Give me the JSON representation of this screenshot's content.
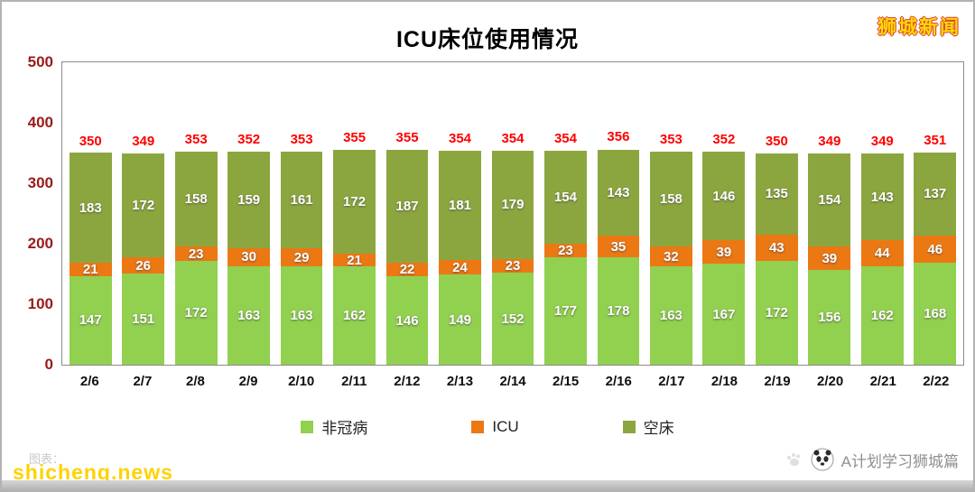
{
  "header": {
    "title": "ICU床位使用情况",
    "brand": "狮城新闻"
  },
  "chart_data": {
    "type": "bar",
    "stacked": true,
    "title": "ICU床位使用情况",
    "categories": [
      "2/6",
      "2/7",
      "2/8",
      "2/9",
      "2/10",
      "2/11",
      "2/12",
      "2/13",
      "2/14",
      "2/15",
      "2/16",
      "2/17",
      "2/18",
      "2/19",
      "2/20",
      "2/21",
      "2/22"
    ],
    "series": [
      {
        "name": "非冠病",
        "color": "#92d050",
        "values": [
          147,
          151,
          172,
          163,
          163,
          162,
          146,
          149,
          152,
          177,
          178,
          163,
          167,
          172,
          156,
          162,
          168
        ]
      },
      {
        "name": "ICU",
        "color": "#ec7814",
        "values": [
          21,
          26,
          23,
          30,
          29,
          21,
          22,
          24,
          23,
          23,
          35,
          32,
          39,
          43,
          39,
          44,
          46
        ]
      },
      {
        "name": "空床",
        "color": "#8ca63f",
        "values": [
          183,
          172,
          158,
          159,
          161,
          172,
          187,
          181,
          179,
          154,
          143,
          158,
          146,
          135,
          154,
          143,
          137
        ]
      }
    ],
    "totals": [
      350,
      349,
      353,
      352,
      353,
      355,
      355,
      354,
      354,
      354,
      356,
      353,
      352,
      350,
      349,
      349,
      351
    ],
    "total_color": "#ff0000",
    "ylim": [
      0,
      500
    ],
    "yticks": [
      0,
      100,
      200,
      300,
      400,
      500
    ],
    "legend_position": "bottom",
    "grid": false
  },
  "footer": {
    "faint_note": "图表：",
    "watermark": "shicheng.news",
    "credit": "A计划学习狮城篇"
  }
}
